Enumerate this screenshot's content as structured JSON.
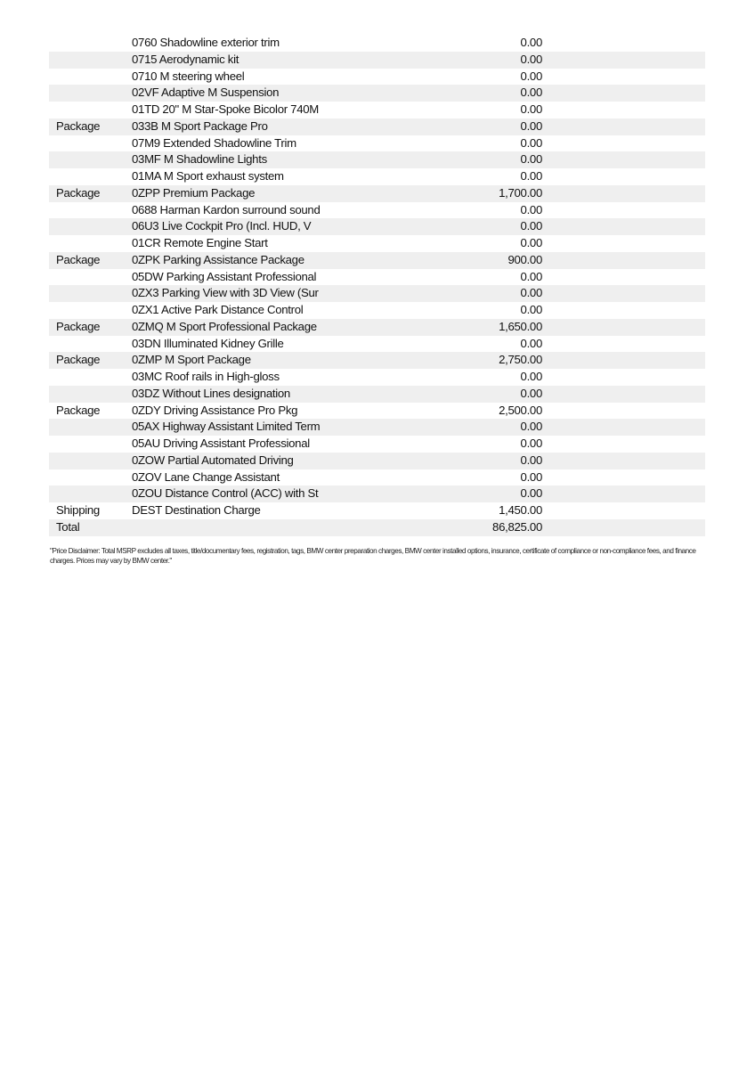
{
  "rows": [
    {
      "category": "",
      "description": "0760 Shadowline exterior trim",
      "amount": "0.00"
    },
    {
      "category": "",
      "description": "0715 Aerodynamic kit",
      "amount": "0.00"
    },
    {
      "category": "",
      "description": "0710 M steering wheel",
      "amount": "0.00"
    },
    {
      "category": "",
      "description": "02VF Adaptive M Suspension",
      "amount": "0.00"
    },
    {
      "category": "",
      "description": "01TD 20\" M Star-Spoke Bicolor 740M",
      "amount": "0.00"
    },
    {
      "category": "Package",
      "description": "033B M Sport Package Pro",
      "amount": "0.00"
    },
    {
      "category": "",
      "description": "07M9 Extended Shadowline Trim",
      "amount": "0.00"
    },
    {
      "category": "",
      "description": "03MF M Shadowline Lights",
      "amount": "0.00"
    },
    {
      "category": "",
      "description": "01MA M Sport exhaust system",
      "amount": "0.00"
    },
    {
      "category": "Package",
      "description": "0ZPP Premium Package",
      "amount": "1,700.00"
    },
    {
      "category": "",
      "description": "0688 Harman Kardon surround sound",
      "amount": "0.00"
    },
    {
      "category": "",
      "description": "06U3 Live Cockpit Pro (Incl. HUD, V",
      "amount": "0.00"
    },
    {
      "category": "",
      "description": "01CR Remote Engine Start",
      "amount": "0.00"
    },
    {
      "category": "Package",
      "description": "0ZPK Parking Assistance Package",
      "amount": "900.00"
    },
    {
      "category": "",
      "description": "05DW Parking Assistant Professional",
      "amount": "0.00"
    },
    {
      "category": "",
      "description": "0ZX3 Parking View with 3D View (Sur",
      "amount": "0.00"
    },
    {
      "category": "",
      "description": "0ZX1 Active Park Distance Control",
      "amount": "0.00"
    },
    {
      "category": "Package",
      "description": "0ZMQ M Sport Professional Package",
      "amount": "1,650.00"
    },
    {
      "category": "",
      "description": "03DN Illuminated Kidney Grille",
      "amount": "0.00"
    },
    {
      "category": "Package",
      "description": "0ZMP M Sport Package",
      "amount": "2,750.00"
    },
    {
      "category": "",
      "description": "03MC Roof rails in High-gloss",
      "amount": "0.00"
    },
    {
      "category": "",
      "description": "03DZ Without Lines designation",
      "amount": "0.00"
    },
    {
      "category": "Package",
      "description": "0ZDY Driving Assistance Pro Pkg",
      "amount": "2,500.00"
    },
    {
      "category": "",
      "description": "05AX Highway Assistant Limited Term",
      "amount": "0.00"
    },
    {
      "category": "",
      "description": "05AU Driving Assistant Professional",
      "amount": "0.00"
    },
    {
      "category": "",
      "description": "0ZOW Partial Automated Driving",
      "amount": "0.00"
    },
    {
      "category": "",
      "description": "0ZOV Lane Change Assistant",
      "amount": "0.00"
    },
    {
      "category": "",
      "description": "0ZOU Distance Control (ACC) with St",
      "amount": "0.00"
    },
    {
      "category": "Shipping",
      "description": "DEST Destination Charge",
      "amount": "1,450.00"
    },
    {
      "category": "Total",
      "description": "",
      "amount": "86,825.00"
    }
  ],
  "disclaimer": "\"Price Disclaimer: Total MSRP excludes all taxes, title/documentary fees, registration, tags, BMW center preparation charges, BMW center installed options, insurance, certificate of compliance or non-compliance fees, and finance charges. Prices may vary by BMW center.\""
}
